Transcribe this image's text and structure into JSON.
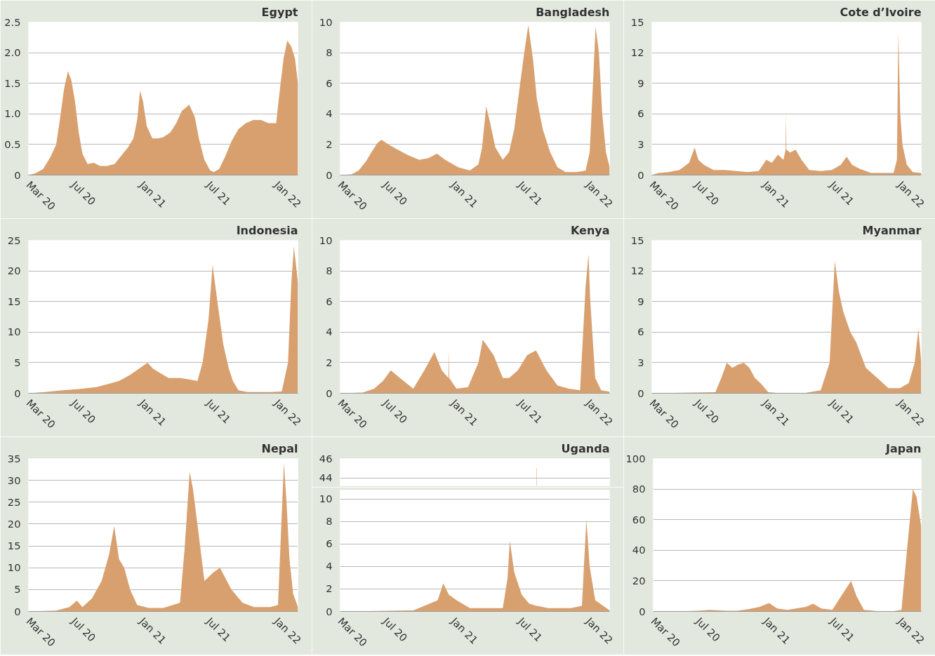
{
  "chart_data": [
    {
      "type": "area",
      "title": "Egypt",
      "xlim": [
        "2020-03-01",
        "2022-02-28"
      ],
      "ylim": [
        0,
        2.5
      ],
      "yticks": [
        0,
        0.5,
        {
          "value": 1,
          "label": "1.0"
        },
        1.5,
        {
          "value": 2,
          "label": "2.0"
        },
        2.5
      ],
      "grid": "y",
      "xticks": [
        {
          "value": "2020-03-01",
          "label": "Mar 20"
        },
        {
          "value": "2020-07-01",
          "label": "Jul 20"
        },
        {
          "value": "2021-01-01",
          "label": "Jan 21"
        },
        {
          "value": "2021-07-01",
          "label": "Jul 21"
        },
        {
          "value": "2022-01-01",
          "label": "Jan 22"
        }
      ],
      "series": [
        {
          "color": "#d9a06f",
          "x": [
            "2020-03-01",
            "2020-03-20",
            "2020-04-10",
            "2020-04-30",
            "2020-05-15",
            "2020-05-25",
            "2020-06-05",
            "2020-06-16",
            "2020-06-25",
            "2020-07-05",
            "2020-07-15",
            "2020-07-25",
            "2020-08-08",
            "2020-08-25",
            "2020-09-10",
            "2020-09-30",
            "2020-10-20",
            "2020-11-05",
            "2020-11-25",
            "2020-12-10",
            "2020-12-20",
            "2020-12-28",
            "2021-01-05",
            "2021-01-15",
            "2021-01-30",
            "2021-02-15",
            "2021-03-01",
            "2021-03-20",
            "2021-04-05",
            "2021-04-20",
            "2021-05-10",
            "2021-05-25",
            "2021-06-05",
            "2021-06-20",
            "2021-07-05",
            "2021-07-15",
            "2021-07-30",
            "2021-08-15",
            "2021-09-01",
            "2021-09-20",
            "2021-10-10",
            "2021-10-30",
            "2021-11-20",
            "2021-12-10",
            "2021-12-31",
            "2022-01-10",
            "2022-01-20",
            "2022-01-30",
            "2022-02-10",
            "2022-02-20",
            "2022-02-28"
          ],
          "values": [
            0,
            0.03,
            0.1,
            0.3,
            0.5,
            0.9,
            1.4,
            1.7,
            1.55,
            1.2,
            0.7,
            0.35,
            0.18,
            0.2,
            0.15,
            0.15,
            0.18,
            0.3,
            0.45,
            0.6,
            0.9,
            1.38,
            1.2,
            0.8,
            0.6,
            0.6,
            0.62,
            0.7,
            0.85,
            1.05,
            1.15,
            0.95,
            0.6,
            0.25,
            0.08,
            0.05,
            0.1,
            0.3,
            0.55,
            0.75,
            0.85,
            0.9,
            0.9,
            0.85,
            0.85,
            1.4,
            1.9,
            2.2,
            2.1,
            1.9,
            1.5
          ]
        }
      ]
    },
    {
      "type": "area",
      "title": "Bangladesh",
      "xlim": [
        "2020-03-01",
        "2022-02-28"
      ],
      "ylim": [
        0,
        10
      ],
      "yticks": [
        0,
        2,
        4,
        6,
        8,
        10
      ],
      "grid": "y",
      "xticks": [
        {
          "value": "2020-03-01",
          "label": "Mar 20"
        },
        {
          "value": "2020-07-01",
          "label": "Jul 20"
        },
        {
          "value": "2021-01-01",
          "label": "Jan 21"
        },
        {
          "value": "2021-07-01",
          "label": "Jul 21"
        },
        {
          "value": "2022-01-01",
          "label": "Jan 22"
        }
      ],
      "series": [
        {
          "color": "#d9a06f",
          "x": [
            "2020-03-01",
            "2020-04-01",
            "2020-04-20",
            "2020-05-10",
            "2020-05-25",
            "2020-06-10",
            "2020-06-21",
            "2020-07-10",
            "2020-08-01",
            "2020-09-01",
            "2020-10-01",
            "2020-10-25",
            "2020-11-18",
            "2020-12-10",
            "2021-01-15",
            "2021-02-15",
            "2021-03-10",
            "2021-03-20",
            "2021-03-31",
            "2021-04-10",
            "2021-04-25",
            "2021-05-15",
            "2021-06-01",
            "2021-06-15",
            "2021-07-01",
            "2021-07-12",
            "2021-07-23",
            "2021-08-05",
            "2021-08-15",
            "2021-08-31",
            "2021-09-20",
            "2021-10-10",
            "2021-11-01",
            "2021-12-01",
            "2021-12-25",
            "2022-01-05",
            "2022-01-12",
            "2022-01-21",
            "2022-01-30",
            "2022-02-08",
            "2022-02-18",
            "2022-02-28"
          ],
          "values": [
            0,
            0.05,
            0.3,
            0.9,
            1.5,
            2.1,
            2.3,
            2.0,
            1.7,
            1.3,
            1.0,
            1.1,
            1.4,
            1.0,
            0.5,
            0.3,
            0.7,
            1.8,
            4.5,
            3.5,
            1.8,
            1.0,
            1.5,
            3.0,
            6.0,
            8.0,
            9.8,
            7.5,
            5.0,
            3.0,
            1.5,
            0.5,
            0.2,
            0.2,
            0.3,
            1.5,
            5.0,
            9.7,
            8.0,
            4.0,
            1.5,
            0.5
          ]
        }
      ]
    },
    {
      "type": "area",
      "title": "Cote d’Ivoire",
      "xlim": [
        "2020-03-01",
        "2022-02-28"
      ],
      "ylim": [
        0,
        15
      ],
      "yticks": [
        0,
        3,
        6,
        9,
        12,
        15
      ],
      "grid": "y",
      "xticks": [
        {
          "value": "2020-03-01",
          "label": "Mar 20"
        },
        {
          "value": "2020-07-01",
          "label": "Jul 20"
        },
        {
          "value": "2021-01-01",
          "label": "Jan 21"
        },
        {
          "value": "2021-07-01",
          "label": "Jul 21"
        },
        {
          "value": "2022-01-01",
          "label": "Jan 22"
        }
      ],
      "series": [
        {
          "color": "#d9a06f",
          "x": [
            "2020-03-01",
            "2020-03-20",
            "2020-04-15",
            "2020-05-15",
            "2020-06-10",
            "2020-06-25",
            "2020-07-05",
            "2020-07-20",
            "2020-08-15",
            "2020-09-15",
            "2020-10-15",
            "2020-11-15",
            "2020-12-15",
            "2021-01-05",
            "2021-01-20",
            "2021-02-05",
            "2021-02-20",
            "2021-02-26",
            "2021-02-27",
            "2021-02-28",
            "2021-03-10",
            "2021-03-25",
            "2021-04-10",
            "2021-05-01",
            "2021-06-01",
            "2021-07-01",
            "2021-07-25",
            "2021-08-10",
            "2021-08-25",
            "2021-09-15",
            "2021-10-15",
            "2021-11-15",
            "2021-12-15",
            "2021-12-24",
            "2021-12-28",
            "2022-01-02",
            "2022-01-08",
            "2022-01-20",
            "2022-02-05",
            "2022-02-28"
          ],
          "values": [
            0,
            0.2,
            0.3,
            0.5,
            1.2,
            2.7,
            1.5,
            1.0,
            0.5,
            0.5,
            0.4,
            0.3,
            0.4,
            1.5,
            1.2,
            2.0,
            1.5,
            2.5,
            6.2,
            2.5,
            2.2,
            2.5,
            1.5,
            0.5,
            0.4,
            0.5,
            1.0,
            1.8,
            1.0,
            0.6,
            0.2,
            0.2,
            0.2,
            1.5,
            14,
            6,
            3,
            1,
            0.3,
            0.2
          ]
        }
      ]
    },
    {
      "type": "area",
      "title": "Indonesia",
      "xlim": [
        "2020-03-01",
        "2022-02-28"
      ],
      "ylim": [
        0,
        25
      ],
      "yticks": [
        0,
        5,
        10,
        15,
        20,
        25
      ],
      "grid": "y",
      "xticks": [
        {
          "value": "2020-03-01",
          "label": "Mar 20"
        },
        {
          "value": "2020-07-01",
          "label": "Jul 20"
        },
        {
          "value": "2021-01-01",
          "label": "Jan 21"
        },
        {
          "value": "2021-07-01",
          "label": "Jul 21"
        },
        {
          "value": "2022-01-01",
          "label": "Jan 22"
        }
      ],
      "series": [
        {
          "color": "#d9a06f",
          "x": [
            "2020-03-01",
            "2020-04-15",
            "2020-06-01",
            "2020-07-15",
            "2020-09-01",
            "2020-10-01",
            "2020-11-01",
            "2020-12-01",
            "2020-12-25",
            "2021-01-17",
            "2021-02-01",
            "2021-02-15",
            "2021-03-15",
            "2021-04-15",
            "2021-05-15",
            "2021-06-01",
            "2021-06-15",
            "2021-07-01",
            "2021-07-12",
            "2021-07-25",
            "2021-08-10",
            "2021-08-25",
            "2021-09-05",
            "2021-09-20",
            "2021-10-15",
            "2021-11-15",
            "2021-12-15",
            "2022-01-15",
            "2022-02-01",
            "2022-02-10",
            "2022-02-17",
            "2022-02-28"
          ],
          "values": [
            0,
            0.2,
            0.5,
            0.7,
            1.0,
            1.5,
            2.0,
            3.0,
            4.0,
            5.0,
            4.0,
            3.5,
            2.5,
            2.5,
            2.2,
            2.0,
            5.0,
            12,
            21,
            15,
            8,
            4,
            2,
            0.5,
            0.2,
            0.2,
            0.2,
            0.3,
            5,
            18,
            24,
            18
          ]
        }
      ]
    },
    {
      "type": "area",
      "title": "Kenya",
      "xlim": [
        "2020-03-01",
        "2022-02-28"
      ],
      "ylim": [
        0,
        10
      ],
      "yticks": [
        0,
        2,
        4,
        6,
        8,
        10
      ],
      "grid": "y",
      "xticks": [
        {
          "value": "2020-03-01",
          "label": "Mar 20"
        },
        {
          "value": "2020-07-01",
          "label": "Jul 20"
        },
        {
          "value": "2021-01-01",
          "label": "Jan 21"
        },
        {
          "value": "2021-07-01",
          "label": "Jul 21"
        },
        {
          "value": "2022-01-01",
          "label": "Jan 22"
        }
      ],
      "series": [
        {
          "color": "#d9a06f",
          "x": [
            "2020-03-01",
            "2020-05-01",
            "2020-06-01",
            "2020-06-25",
            "2020-07-16",
            "2020-08-10",
            "2020-09-15",
            "2020-10-15",
            "2020-11-11",
            "2020-12-01",
            "2020-12-19",
            "2020-12-20",
            "2020-12-21",
            "2021-01-10",
            "2021-02-10",
            "2021-03-10",
            "2021-03-22",
            "2021-04-20",
            "2021-05-15",
            "2021-06-01",
            "2021-06-25",
            "2021-07-20",
            "2021-08-13",
            "2021-09-10",
            "2021-10-10",
            "2021-11-10",
            "2021-12-10",
            "2021-12-25",
            "2022-01-02",
            "2022-01-06",
            "2022-01-20",
            "2022-02-05",
            "2022-02-28"
          ],
          "values": [
            0,
            0.05,
            0.3,
            0.8,
            1.5,
            1.0,
            0.3,
            1.5,
            2.7,
            1.5,
            1.0,
            2.9,
            1.0,
            0.3,
            0.4,
            2.0,
            3.5,
            2.5,
            1.0,
            1.0,
            1.5,
            2.5,
            2.8,
            1.5,
            0.5,
            0.3,
            0.2,
            7,
            9.1,
            6.3,
            1,
            0.2,
            0.1
          ]
        }
      ]
    },
    {
      "type": "area",
      "title": "Myanmar",
      "xlim": [
        "2020-03-01",
        "2022-02-28"
      ],
      "ylim": [
        0,
        15
      ],
      "yticks": [
        0,
        3,
        6,
        9,
        12,
        15
      ],
      "grid": "y",
      "xticks": [
        {
          "value": "2020-03-01",
          "label": "Mar 20"
        },
        {
          "value": "2020-07-01",
          "label": "Jul 20"
        },
        {
          "value": "2021-01-01",
          "label": "Jan 21"
        },
        {
          "value": "2021-07-01",
          "label": "Jul 21"
        },
        {
          "value": "2022-01-01",
          "label": "Jan 22"
        }
      ],
      "series": [
        {
          "color": "#d9a06f",
          "x": [
            "2020-03-01",
            "2020-08-20",
            "2020-09-05",
            "2020-09-20",
            "2020-10-05",
            "2020-10-20",
            "2020-11-05",
            "2020-11-20",
            "2020-12-05",
            "2020-12-20",
            "2021-01-10",
            "2021-02-15",
            "2021-04-15",
            "2021-06-01",
            "2021-06-25",
            "2021-07-09",
            "2021-07-20",
            "2021-08-01",
            "2021-08-20",
            "2021-09-05",
            "2021-10-01",
            "2021-11-01",
            "2021-12-01",
            "2022-01-01",
            "2022-01-25",
            "2022-02-10",
            "2022-02-20",
            "2022-02-28"
          ],
          "values": [
            0,
            0.1,
            1.5,
            3.0,
            2.5,
            2.8,
            3.0,
            2.5,
            1.5,
            1.0,
            0.1,
            0,
            0,
            0.3,
            3,
            13,
            10,
            8,
            6,
            5,
            2.5,
            1.5,
            0.5,
            0.5,
            1.0,
            3.0,
            6.3,
            3.0
          ]
        }
      ]
    },
    {
      "type": "area",
      "title": "Nepal",
      "xlim": [
        "2020-03-01",
        "2022-02-28"
      ],
      "ylim": [
        0,
        35
      ],
      "yticks": [
        0,
        5,
        10,
        15,
        20,
        25,
        30,
        35
      ],
      "grid": "y",
      "xticks": [
        {
          "value": "2020-03-01",
          "label": "Mar 20"
        },
        {
          "value": "2020-07-01",
          "label": "Jul 20"
        },
        {
          "value": "2021-01-01",
          "label": "Jan 21"
        },
        {
          "value": "2021-07-01",
          "label": "Jul 21"
        },
        {
          "value": "2022-01-01",
          "label": "Jan 22"
        }
      ],
      "series": [
        {
          "color": "#d9a06f",
          "x": [
            "2020-03-01",
            "2020-05-15",
            "2020-06-20",
            "2020-07-10",
            "2020-07-25",
            "2020-08-20",
            "2020-09-15",
            "2020-10-05",
            "2020-10-19",
            "2020-11-01",
            "2020-11-15",
            "2020-12-01",
            "2020-12-20",
            "2021-01-20",
            "2021-03-01",
            "2021-04-15",
            "2021-04-28",
            "2021-05-11",
            "2021-05-20",
            "2021-06-01",
            "2021-06-20",
            "2021-07-15",
            "2021-08-01",
            "2021-09-01",
            "2021-10-01",
            "2021-11-01",
            "2021-12-15",
            "2022-01-05",
            "2022-01-14",
            "2022-01-21",
            "2022-01-28",
            "2022-02-05",
            "2022-02-15",
            "2022-02-28"
          ],
          "values": [
            0,
            0.2,
            1,
            2.5,
            1,
            3,
            7,
            13,
            19.5,
            12,
            10,
            5,
            1.5,
            0.8,
            0.8,
            2,
            15,
            32,
            28,
            20,
            7,
            9,
            10,
            5,
            2,
            1,
            1,
            1.5,
            20,
            34,
            25,
            12,
            4,
            1
          ]
        }
      ]
    },
    {
      "type": "bar",
      "title": "Uganda",
      "tick_labels": "y",
      "xlim": [
        "2020-03-01",
        "2022-02-28"
      ],
      "ylim": [
        43.2,
        46
      ],
      "yticks": [
        44,
        46
      ],
      "grid": "y",
      "series": [
        {
          "color": "#d9a06f",
          "x": [
            "2021-08-15"
          ],
          "values": [
            45
          ]
        }
      ]
    },
    {
      "type": "area",
      "xlim": [
        "2020-03-01",
        "2022-02-28"
      ],
      "ylim": [
        0,
        10.8
      ],
      "yticks": [
        0,
        2,
        4,
        6,
        8,
        10
      ],
      "grid": "y",
      "xticks": [
        {
          "value": "2020-03-01",
          "label": "Mar 20"
        },
        {
          "value": "2020-07-01",
          "label": "Jul 20"
        },
        {
          "value": "2021-01-01",
          "label": "Jan 21"
        },
        {
          "value": "2021-07-01",
          "label": "Jul 21"
        },
        {
          "value": "2022-01-01",
          "label": "Jan 22"
        }
      ],
      "series": [
        {
          "color": "#d9a06f",
          "x": [
            "2020-03-01",
            "2020-09-15",
            "2020-10-15",
            "2020-11-20",
            "2020-12-05",
            "2020-12-20",
            "2021-01-10",
            "2021-02-15",
            "2021-04-15",
            "2021-05-15",
            "2021-05-28",
            "2021-06-03",
            "2021-06-15",
            "2021-07-05",
            "2021-07-25",
            "2021-08-14",
            "2021-08-16",
            "2021-09-15",
            "2021-11-15",
            "2021-12-15",
            "2021-12-27",
            "2022-01-05",
            "2022-01-20",
            "2022-02-28"
          ],
          "values": [
            0,
            0.1,
            0.5,
            1,
            2.5,
            1.5,
            1,
            0.3,
            0.3,
            0.3,
            3,
            6.3,
            3.5,
            1.5,
            0.7,
            0.5,
            0.5,
            0.3,
            0.3,
            0.5,
            8.2,
            4,
            1,
            0.1
          ]
        }
      ]
    },
    {
      "type": "area",
      "title": "Japan",
      "xlim": [
        "2020-03-01",
        "2022-02-28"
      ],
      "ylim": [
        0,
        100
      ],
      "yticks": [
        0,
        20,
        40,
        60,
        80,
        100
      ],
      "grid": "y",
      "xticks": [
        {
          "value": "2020-03-01",
          "label": "Mar 20"
        },
        {
          "value": "2020-07-01",
          "label": "Jul 20"
        },
        {
          "value": "2021-01-01",
          "label": "Jan 21"
        },
        {
          "value": "2021-07-01",
          "label": "Jul 21"
        },
        {
          "value": "2022-01-01",
          "label": "Jan 22"
        }
      ],
      "series": [
        {
          "color": "#d9a06f",
          "x": [
            "2020-03-01",
            "2020-06-01",
            "2020-07-01",
            "2020-08-01",
            "2020-09-15",
            "2020-10-15",
            "2020-11-15",
            "2020-12-15",
            "2021-01-10",
            "2021-02-01",
            "2021-03-01",
            "2021-04-20",
            "2021-05-10",
            "2021-06-01",
            "2021-07-01",
            "2021-07-25",
            "2021-08-21",
            "2021-09-05",
            "2021-09-25",
            "2021-11-01",
            "2021-12-15",
            "2022-01-05",
            "2022-01-20",
            "2022-02-05",
            "2022-02-15",
            "2022-02-28"
          ],
          "values": [
            0,
            0.2,
            0.5,
            1,
            0.5,
            0.5,
            1.5,
            3,
            5.5,
            2,
            1,
            3,
            5,
            2,
            1,
            10,
            20,
            10,
            1,
            0.2,
            0.2,
            1,
            40,
            80,
            75,
            55
          ]
        }
      ]
    }
  ]
}
